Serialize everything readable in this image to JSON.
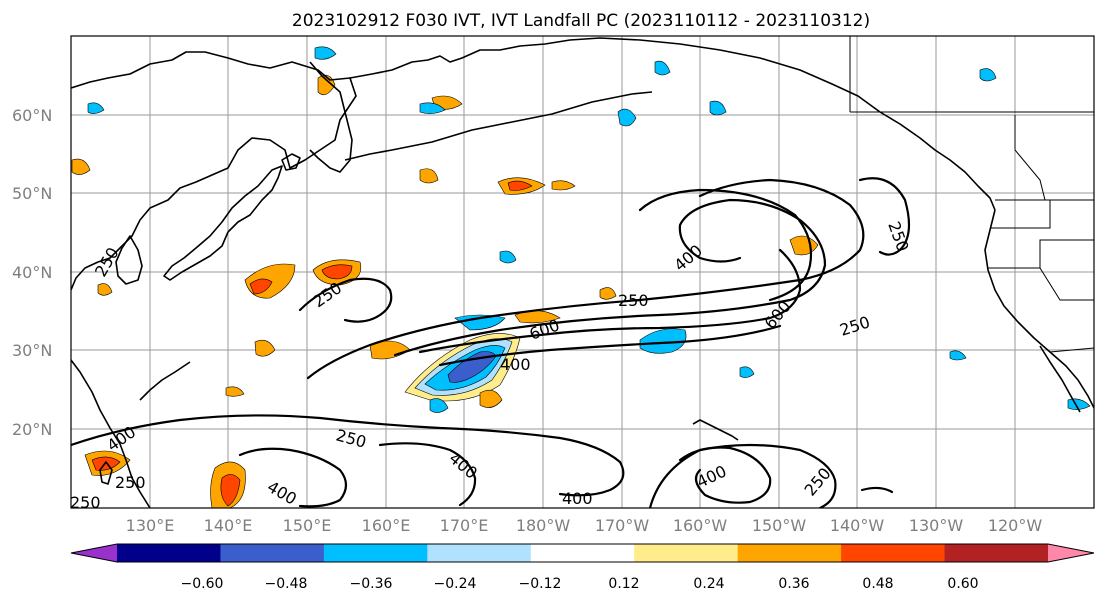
{
  "title": "2023102912 F030 IVT, IVT Landfall PC (2023110112 - 2023110312)",
  "lat_labels": [
    "60°N",
    "50°N",
    "40°N",
    "30°N",
    "20°N"
  ],
  "lon_labels": [
    "130°E",
    "140°E",
    "150°E",
    "160°E",
    "170°E",
    "180°W",
    "170°W",
    "160°W",
    "150°W",
    "140°W",
    "130°W",
    "120°W"
  ],
  "contour_labels": [
    "250",
    "250",
    "250",
    "250",
    "250",
    "250",
    "250",
    "250",
    "250",
    "400",
    "400",
    "400",
    "400",
    "400",
    "400",
    "400",
    "600",
    "600"
  ],
  "colorbar": {
    "ticks": [
      "−0.60",
      "−0.48",
      "−0.36",
      "−0.24",
      "−0.12",
      "0.12",
      "0.24",
      "0.36",
      "0.48",
      "0.60"
    ],
    "colors": [
      "#9932cc",
      "#00008b",
      "#3a5fcd",
      "#00bfff",
      "#b0e2ff",
      "#ffffff",
      "#ffec8b",
      "#ffa500",
      "#ff4500",
      "#b22222",
      "#ff88aa"
    ]
  },
  "colors": {
    "neg_strong": "#3a5fcd",
    "neg": "#00bfff",
    "neg_weak": "#b0e2ff",
    "pos_weak": "#ffec8b",
    "pos": "#ffa500",
    "pos_strong": "#ff4500"
  }
}
